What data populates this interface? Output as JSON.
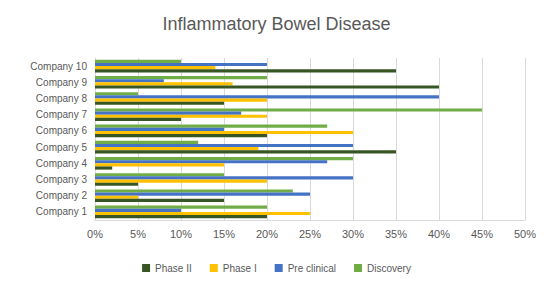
{
  "chart_data": {
    "type": "bar",
    "title": "Inflammatory Bowel Disease",
    "orientation": "horizontal",
    "categories": [
      "Company 1",
      "Company 2",
      "Company 3",
      "Company 4",
      "Company 5",
      "Company 6",
      "Company 7",
      "Company 8",
      "Company 9",
      "Company 10"
    ],
    "series": [
      {
        "name": "Phase II",
        "color": "#375623",
        "values": [
          20,
          15,
          5,
          2,
          35,
          20,
          10,
          15,
          40,
          35
        ]
      },
      {
        "name": "Phase I",
        "color": "#ffc000",
        "values": [
          25,
          5,
          20,
          15,
          19,
          30,
          20,
          20,
          16,
          14
        ]
      },
      {
        "name": "Pre clinical",
        "color": "#4472c4",
        "values": [
          10,
          25,
          30,
          27,
          30,
          15,
          17,
          40,
          8,
          20
        ]
      },
      {
        "name": "Discovery",
        "color": "#70ad47",
        "values": [
          20,
          23,
          15,
          30,
          12,
          27,
          45,
          5,
          20,
          10
        ]
      }
    ],
    "xlim": [
      0,
      50
    ],
    "xticks": [
      {
        "value": 0,
        "label": "0%"
      },
      {
        "value": 5,
        "label": "5%"
      },
      {
        "value": 10,
        "label": "10%"
      },
      {
        "value": 15,
        "label": "15%"
      },
      {
        "value": 20,
        "label": "20%"
      },
      {
        "value": 25,
        "label": "25%"
      },
      {
        "value": 30,
        "label": "30%"
      },
      {
        "value": 35,
        "label": "35%"
      },
      {
        "value": 40,
        "label": "40%"
      },
      {
        "value": 45,
        "label": "45%"
      },
      {
        "value": 50,
        "label": "50%"
      }
    ],
    "grid": true,
    "legend": "bottom"
  }
}
